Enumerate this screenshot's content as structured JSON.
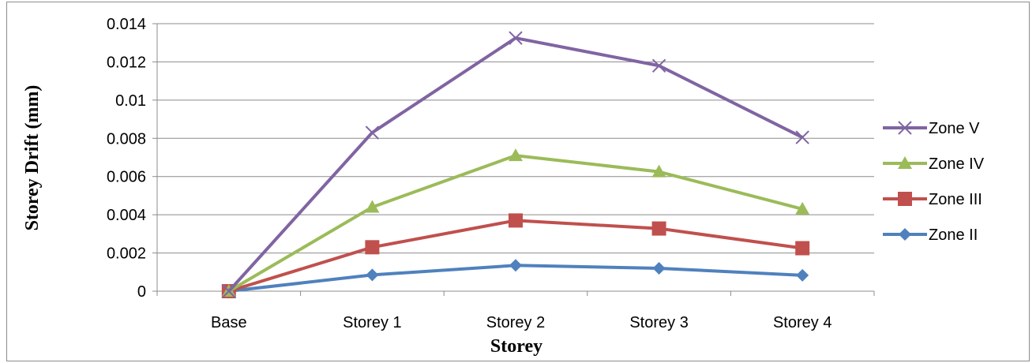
{
  "chart_data": {
    "type": "line",
    "categories": [
      "Base",
      "Storey 1",
      "Storey 2",
      "Storey 3",
      "Storey 4"
    ],
    "xlabel": "Storey",
    "ylabel": "Storey Drift (mm)",
    "ylim": [
      0,
      0.014
    ],
    "yticks": [
      0,
      0.002,
      0.004,
      0.006,
      0.008,
      0.01,
      0.012,
      0.014
    ],
    "ytick_labels": [
      "0",
      "0.002",
      "0.004",
      "0.006",
      "0.008",
      "0.01",
      "0.012",
      "0.014"
    ],
    "grid": "horizontal",
    "legend_position": "right",
    "series": [
      {
        "name": "Zone V",
        "color": "#8064A2",
        "marker": "x",
        "values": [
          0,
          0.0083,
          0.01325,
          0.0118,
          0.00805
        ]
      },
      {
        "name": "Zone IV",
        "color": "#9BBB59",
        "marker": "triangle",
        "values": [
          0,
          0.0044,
          0.0071,
          0.00625,
          0.0043
        ]
      },
      {
        "name": "Zone III",
        "color": "#C0504D",
        "marker": "square",
        "values": [
          0,
          0.0023,
          0.0037,
          0.00328,
          0.00225
        ]
      },
      {
        "name": "Zone II",
        "color": "#4F81BD",
        "marker": "diamond",
        "values": [
          0,
          0.00085,
          0.00135,
          0.0012,
          0.00083
        ]
      }
    ]
  }
}
